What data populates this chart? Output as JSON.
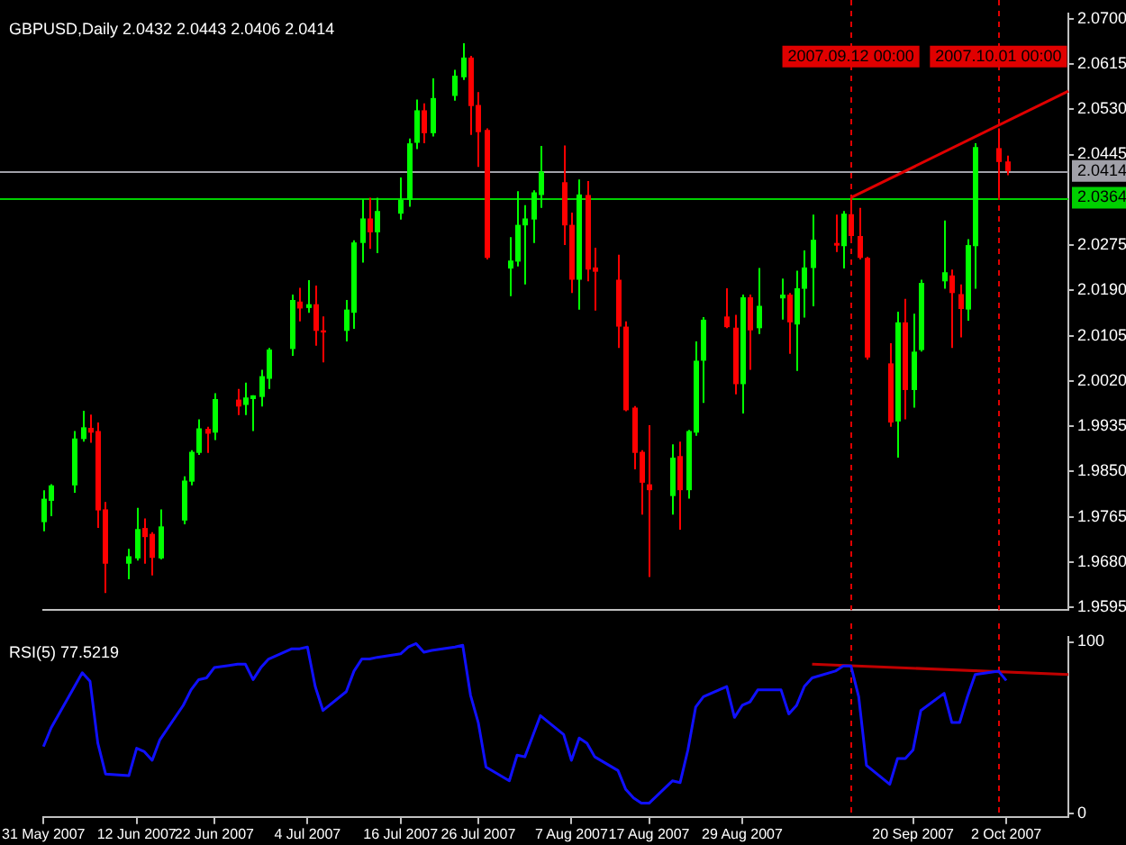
{
  "chart_data": [
    {
      "type": "candlestick",
      "title": "GBPUSD,Daily 2.0432 2.0443 2.0406 2.0414",
      "xlim": [
        "2007-05-31",
        "2007-10-10"
      ],
      "tick_labels": "y",
      "x": [
        "2007-05-31",
        "2007-06-01",
        "2007-06-04",
        "2007-06-05",
        "2007-06-06",
        "2007-06-07",
        "2007-06-08",
        "2007-06-11",
        "2007-06-12",
        "2007-06-13",
        "2007-06-14",
        "2007-06-15",
        "2007-06-18",
        "2007-06-19",
        "2007-06-20",
        "2007-06-21",
        "2007-06-22",
        "2007-06-25",
        "2007-06-26",
        "2007-06-27",
        "2007-06-28",
        "2007-06-29",
        "2007-07-02",
        "2007-07-03",
        "2007-07-04",
        "2007-07-05",
        "2007-07-06",
        "2007-07-09",
        "2007-07-10",
        "2007-07-11",
        "2007-07-12",
        "2007-07-13",
        "2007-07-16",
        "2007-07-17",
        "2007-07-18",
        "2007-07-19",
        "2007-07-20",
        "2007-07-23",
        "2007-07-24",
        "2007-07-25",
        "2007-07-26",
        "2007-07-27",
        "2007-07-30",
        "2007-07-31",
        "2007-08-01",
        "2007-08-02",
        "2007-08-03",
        "2007-08-06",
        "2007-08-07",
        "2007-08-08",
        "2007-08-09",
        "2007-08-10",
        "2007-08-13",
        "2007-08-14",
        "2007-08-15",
        "2007-08-16",
        "2007-08-17",
        "2007-08-20",
        "2007-08-21",
        "2007-08-22",
        "2007-08-23",
        "2007-08-24",
        "2007-08-27",
        "2007-08-28",
        "2007-08-29",
        "2007-08-30",
        "2007-08-31",
        "2007-09-03",
        "2007-09-04",
        "2007-09-05",
        "2007-09-06",
        "2007-09-07",
        "2007-09-10",
        "2007-09-11",
        "2007-09-12",
        "2007-09-13",
        "2007-09-14",
        "2007-09-17",
        "2007-09-18",
        "2007-09-19",
        "2007-09-20",
        "2007-09-21",
        "2007-09-24",
        "2007-09-25",
        "2007-09-26",
        "2007-09-27",
        "2007-09-28",
        "2007-10-01",
        "2007-10-02"
      ],
      "ohlc": [
        [
          1.9755,
          1.9815,
          1.9738,
          1.9799
        ],
        [
          1.9795,
          1.9826,
          1.9766,
          1.9824
        ],
        [
          1.9824,
          1.9926,
          1.981,
          1.9912
        ],
        [
          1.9911,
          1.9964,
          1.9906,
          1.9933
        ],
        [
          1.9932,
          1.9957,
          1.9904,
          1.9923
        ],
        [
          1.9926,
          1.9942,
          1.9744,
          1.9777
        ],
        [
          1.9779,
          1.9793,
          1.9622,
          1.9677
        ],
        [
          1.9677,
          1.9705,
          1.9648,
          1.9691
        ],
        [
          1.9687,
          1.9782,
          1.9683,
          1.9742
        ],
        [
          1.9744,
          1.9762,
          1.9677,
          1.9727
        ],
        [
          1.9733,
          1.9736,
          1.9655,
          1.9688
        ],
        [
          1.9687,
          1.9779,
          1.9685,
          1.9747
        ],
        [
          1.9758,
          1.9841,
          1.9751,
          1.9833
        ],
        [
          1.9831,
          1.989,
          1.9824,
          1.9887
        ],
        [
          1.9885,
          1.9948,
          1.9881,
          1.9931
        ],
        [
          1.993,
          1.9934,
          1.9885,
          1.9921
        ],
        [
          1.9923,
          1.9997,
          1.9909,
          1.9986
        ],
        [
          1.9985,
          2.0005,
          1.9956,
          1.9972
        ],
        [
          1.9975,
          2.0017,
          1.9956,
          1.9989
        ],
        [
          1.9986,
          1.9993,
          1.9926,
          1.9993
        ],
        [
          1.999,
          2.0041,
          1.9972,
          2.0029
        ],
        [
          2.0024,
          2.0082,
          2.0005,
          2.0079
        ],
        [
          2.008,
          2.0182,
          2.0067,
          2.0172
        ],
        [
          2.0169,
          2.0195,
          2.0132,
          2.0156
        ],
        [
          2.0157,
          2.0209,
          2.0148,
          2.0164
        ],
        [
          2.0164,
          2.0199,
          2.0086,
          2.0114
        ],
        [
          2.0115,
          2.0141,
          2.0055,
          2.0111
        ],
        [
          2.0114,
          2.0172,
          2.0094,
          2.0154
        ],
        [
          2.0148,
          2.0284,
          2.0118,
          2.028
        ],
        [
          2.0279,
          2.0361,
          2.0242,
          2.0325
        ],
        [
          2.0325,
          2.0364,
          2.0268,
          2.0299
        ],
        [
          2.0299,
          2.0364,
          2.026,
          2.0339
        ],
        [
          2.0334,
          2.0402,
          2.0323,
          2.036
        ],
        [
          2.036,
          2.0475,
          2.0347,
          2.0466
        ],
        [
          2.0467,
          2.0548,
          2.0455,
          2.0528
        ],
        [
          2.0528,
          2.0541,
          2.0466,
          2.0485
        ],
        [
          2.0485,
          2.0588,
          2.0479,
          2.0551
        ],
        [
          2.0555,
          2.0604,
          2.0546,
          2.0593
        ],
        [
          2.059,
          2.0654,
          2.0585,
          2.0627
        ],
        [
          2.0627,
          2.063,
          2.0482,
          2.0536
        ],
        [
          2.0538,
          2.0562,
          2.0422,
          2.0487
        ],
        [
          2.0491,
          2.0494,
          2.0248,
          2.0251
        ],
        [
          2.0231,
          2.029,
          2.0179,
          2.0246
        ],
        [
          2.0244,
          2.0376,
          2.0235,
          2.0313
        ],
        [
          2.0312,
          2.035,
          2.0201,
          2.0325
        ],
        [
          2.0323,
          2.0378,
          2.0279,
          2.0374
        ],
        [
          2.0369,
          2.0461,
          2.0345,
          2.0413
        ],
        [
          2.0393,
          2.0462,
          2.0275,
          2.0312
        ],
        [
          2.0313,
          2.0336,
          2.0185,
          2.021
        ],
        [
          2.021,
          2.0398,
          2.0154,
          2.037
        ],
        [
          2.0369,
          2.0395,
          2.0207,
          2.0229
        ],
        [
          2.0233,
          2.027,
          2.0152,
          2.0225
        ],
        [
          2.021,
          2.0257,
          2.0082,
          2.0122
        ],
        [
          2.0122,
          2.0132,
          1.9963,
          1.9965
        ],
        [
          1.997,
          1.9973,
          1.9854,
          1.9885
        ],
        [
          1.9887,
          1.989,
          1.9769,
          1.9829
        ],
        [
          1.9826,
          1.9937,
          1.9652,
          1.9815
        ],
        [
          1.9804,
          1.9901,
          1.9769,
          1.9876
        ],
        [
          1.9879,
          1.9906,
          1.9741,
          1.9815
        ],
        [
          1.9815,
          1.9928,
          1.9799,
          1.9926
        ],
        [
          1.9923,
          2.0094,
          1.9917,
          2.0058
        ],
        [
          2.0058,
          2.014,
          1.9979,
          2.0135
        ],
        [
          2.0141,
          2.0194,
          2.0119,
          2.0121
        ],
        [
          2.012,
          2.0144,
          1.9995,
          2.0014
        ],
        [
          2.0014,
          2.0182,
          1.9959,
          2.0177
        ],
        [
          2.0177,
          2.0182,
          2.0041,
          2.0115
        ],
        [
          2.0119,
          2.0232,
          2.0108,
          2.0161
        ],
        [
          2.0175,
          2.0212,
          2.0135,
          2.0182
        ],
        [
          2.0182,
          2.0185,
          2.0071,
          2.013
        ],
        [
          2.0126,
          2.0227,
          2.0039,
          2.0194
        ],
        [
          2.0193,
          2.0265,
          2.0139,
          2.0233
        ],
        [
          2.0232,
          2.0332,
          2.016,
          2.0285
        ],
        [
          2.0279,
          2.0332,
          2.0262,
          2.0274
        ],
        [
          2.0273,
          2.0339,
          2.0231,
          2.0334
        ],
        [
          2.0333,
          2.0364,
          2.0288,
          2.0292
        ],
        [
          2.0292,
          2.0345,
          2.0248,
          2.0251
        ],
        [
          2.0251,
          2.0253,
          2.006,
          2.0064
        ],
        [
          2.0053,
          2.0091,
          1.9934,
          1.9942
        ],
        [
          1.9944,
          2.015,
          1.9876,
          2.013
        ],
        [
          2.013,
          2.0174,
          1.9948,
          2.0003
        ],
        [
          2.0003,
          2.0146,
          1.997,
          2.0075
        ],
        [
          2.0078,
          2.021,
          2.0075,
          2.0204
        ],
        [
          2.0207,
          2.0321,
          2.0193,
          2.0224
        ],
        [
          2.0218,
          2.0229,
          2.0082,
          2.0185
        ],
        [
          2.0183,
          2.0201,
          2.0102,
          2.0155
        ],
        [
          2.0154,
          2.0286,
          2.0133,
          2.0275
        ],
        [
          2.0273,
          2.0466,
          2.0193,
          2.0459
        ],
        [
          2.0457,
          2.0494,
          2.0365,
          2.0431
        ],
        [
          2.0432,
          2.0443,
          2.0406,
          2.0414
        ]
      ],
      "colors": [
        "#00ff00",
        "#00ff00",
        "#00ff00",
        "#00ff00",
        "#ff0000",
        "#ff0000",
        "#ff0000",
        "#00ff00",
        "#00ff00",
        "#ff0000",
        "#ff0000",
        "#00ff00",
        "#00ff00",
        "#00ff00",
        "#00ff00",
        "#ff0000",
        "#00ff00",
        "#ff0000",
        "#00ff00",
        "#00ff00",
        "#00ff00",
        "#00ff00",
        "#00ff00",
        "#ff0000",
        "#00ff00",
        "#ff0000",
        "#ff0000",
        "#00ff00",
        "#00ff00",
        "#00ff00",
        "#ff0000",
        "#00ff00",
        "#00ff00",
        "#00ff00",
        "#00ff00",
        "#ff0000",
        "#00ff00",
        "#00ff00",
        "#00ff00",
        "#ff0000",
        "#ff0000",
        "#ff0000",
        "#00ff00",
        "#00ff00",
        "#00ff00",
        "#00ff00",
        "#00ff00",
        "#ff0000",
        "#ff0000",
        "#00ff00",
        "#ff0000",
        "#ff0000",
        "#ff0000",
        "#ff0000",
        "#ff0000",
        "#ff0000",
        "#ff0000",
        "#00ff00",
        "#ff0000",
        "#00ff00",
        "#00ff00",
        "#00ff00",
        "#ff0000",
        "#ff0000",
        "#00ff00",
        "#ff0000",
        "#00ff00",
        "#00ff00",
        "#ff0000",
        "#00ff00",
        "#00ff00",
        "#00ff00",
        "#ff0000",
        "#00ff00",
        "#ff0000",
        "#ff0000",
        "#ff0000",
        "#ff0000",
        "#00ff00",
        "#ff0000",
        "#00ff00",
        "#00ff00",
        "#00ff00",
        "#ff0000",
        "#ff0000",
        "#00ff00",
        "#00ff00",
        "#ff0000",
        "#ff0000"
      ],
      "series": [
        {
          "type": "line",
          "color": "#e00000",
          "x": [
            "2007-09-12",
            "2007-10-10"
          ],
          "values": [
            2.0364,
            2.0564
          ]
        }
      ],
      "ylim": [
        1.959,
        2.071
      ],
      "yticks": [
        {
          "value": 2.07,
          "label": "2.0700"
        },
        {
          "value": 2.0615,
          "label": "2.0615"
        },
        {
          "value": 2.053,
          "label": "2.0530"
        },
        {
          "value": 2.0445,
          "label": "2.0445"
        },
        {
          "value": 2.0275,
          "label": "2.0275"
        },
        {
          "value": 2.019,
          "label": "2.0190"
        },
        {
          "value": 2.0105,
          "label": "2.0105"
        },
        {
          "value": 2.002,
          "label": "2.0020"
        },
        {
          "value": 1.9935,
          "label": "1.9935"
        },
        {
          "value": 1.985,
          "label": "1.9850"
        },
        {
          "value": 1.9765,
          "label": "1.9765"
        },
        {
          "value": 1.968,
          "label": "1.9680"
        },
        {
          "value": 1.9595,
          "label": "1.9595"
        }
      ],
      "ref_lines": [
        {
          "axis": "y",
          "value": 2.0414,
          "label": "2.0414",
          "color": "#a0a0a8"
        },
        {
          "axis": "y",
          "value": 2.0364,
          "label": "2.0364",
          "color": "#00d000"
        },
        {
          "axis": "x",
          "value": "2007-09-12",
          "label": "2007.09.12 00:00",
          "color": "#e00000",
          "line_style": "dashed"
        },
        {
          "axis": "x",
          "value": "2007-10-01",
          "label": "2007.10.01 00:00",
          "color": "#e00000",
          "line_style": "dashed"
        }
      ]
    },
    {
      "type": "line",
      "title": "RSI(5) 77.5219",
      "xlim": [
        "2007-05-31",
        "2007-10-10"
      ],
      "x": [
        "2007-05-31",
        "2007-06-01",
        "2007-06-04",
        "2007-06-05",
        "2007-06-06",
        "2007-06-07",
        "2007-06-08",
        "2007-06-11",
        "2007-06-12",
        "2007-06-13",
        "2007-06-14",
        "2007-06-15",
        "2007-06-18",
        "2007-06-19",
        "2007-06-20",
        "2007-06-21",
        "2007-06-22",
        "2007-06-25",
        "2007-06-26",
        "2007-06-27",
        "2007-06-28",
        "2007-06-29",
        "2007-07-02",
        "2007-07-03",
        "2007-07-04",
        "2007-07-05",
        "2007-07-06",
        "2007-07-09",
        "2007-07-10",
        "2007-07-11",
        "2007-07-12",
        "2007-07-13",
        "2007-07-16",
        "2007-07-17",
        "2007-07-18",
        "2007-07-19",
        "2007-07-20",
        "2007-07-23",
        "2007-07-24",
        "2007-07-25",
        "2007-07-26",
        "2007-07-27",
        "2007-07-30",
        "2007-07-31",
        "2007-08-01",
        "2007-08-02",
        "2007-08-03",
        "2007-08-06",
        "2007-08-07",
        "2007-08-08",
        "2007-08-09",
        "2007-08-10",
        "2007-08-13",
        "2007-08-14",
        "2007-08-15",
        "2007-08-16",
        "2007-08-17",
        "2007-08-20",
        "2007-08-21",
        "2007-08-22",
        "2007-08-23",
        "2007-08-24",
        "2007-08-27",
        "2007-08-28",
        "2007-08-29",
        "2007-08-30",
        "2007-08-31",
        "2007-09-03",
        "2007-09-04",
        "2007-09-05",
        "2007-09-06",
        "2007-09-07",
        "2007-09-10",
        "2007-09-11",
        "2007-09-12",
        "2007-09-13",
        "2007-09-14",
        "2007-09-17",
        "2007-09-18",
        "2007-09-19",
        "2007-09-20",
        "2007-09-21",
        "2007-09-24",
        "2007-09-25",
        "2007-09-26",
        "2007-09-27",
        "2007-09-28",
        "2007-10-01",
        "2007-10-02"
      ],
      "series": [
        {
          "color": "#1010ff",
          "values": [
            39,
            50,
            74,
            82,
            77,
            41,
            23,
            22,
            38,
            36,
            31,
            43,
            63,
            72,
            78,
            79,
            85,
            87,
            87,
            78,
            85,
            90,
            96,
            96,
            97,
            74,
            60,
            71,
            83,
            90,
            90,
            91,
            93,
            97,
            99,
            94,
            95,
            97,
            98,
            69,
            53,
            27,
            19,
            34,
            33,
            45,
            57,
            46,
            31,
            44,
            41,
            33,
            25,
            14,
            9,
            6,
            6,
            19,
            18,
            37,
            62,
            68,
            74,
            56,
            63,
            65,
            72,
            72,
            58,
            63,
            74,
            79,
            83,
            86,
            86,
            68,
            28,
            17,
            32,
            32,
            37,
            60,
            70,
            53,
            53,
            68,
            81,
            83,
            77.5
          ]
        },
        {
          "type": "line",
          "color": "#c00000",
          "x": [
            "2007-09-07",
            "2007-10-10"
          ],
          "values": [
            87,
            81
          ]
        }
      ],
      "ylim": [
        -2,
        103
      ],
      "yticks": [
        0,
        100
      ],
      "xticks": [
        {
          "value": "2007-05-31",
          "label": "31 May 2007"
        },
        {
          "value": "2007-06-12",
          "label": "12 Jun 2007"
        },
        {
          "value": "2007-06-22",
          "label": "22 Jun 2007"
        },
        {
          "value": "2007-07-04",
          "label": "4 Jul 2007"
        },
        {
          "value": "2007-07-16",
          "label": "16 Jul 2007"
        },
        {
          "value": "2007-07-26",
          "label": "26 Jul 2007"
        },
        {
          "value": "2007-08-07",
          "label": "7 Aug 2007"
        },
        {
          "value": "2007-08-17",
          "label": "17 Aug 2007"
        },
        {
          "value": "2007-08-29",
          "label": "29 Aug 2007"
        },
        {
          "value": "2007-09-20",
          "label": "20 Sep 2007"
        },
        {
          "value": "2007-10-02",
          "label": "2 Oct 2007"
        }
      ],
      "ref_lines": [
        {
          "axis": "x",
          "value": "2007-09-12",
          "color": "#e00000",
          "line_style": "dashed"
        },
        {
          "axis": "x",
          "value": "2007-10-01",
          "color": "#e00000",
          "line_style": "dashed"
        }
      ]
    }
  ]
}
